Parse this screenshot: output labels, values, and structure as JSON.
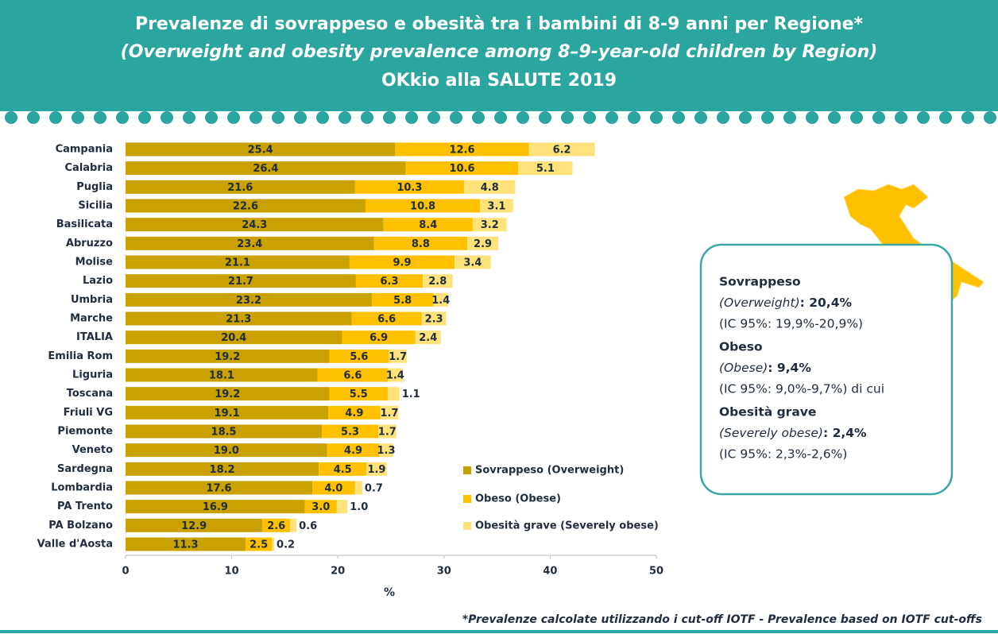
{
  "chart_data": {
    "type": "stacked_barh",
    "title": "Prevalenze di sovrappeso e obesità tra i bambini di 8-9 anni per Regione*",
    "subtitle": "(Overweight and obesity prevalence among 8–9-year-old children by Region)",
    "subtitle2": "OKkio alla SALUTE 2019",
    "xlabel": "%",
    "footnote": "*Prevalenze calcolate utilizzando i cut-off IOTF - Prevalence based on IOTF cut-offs",
    "categories": [
      "Campania",
      "Calabria",
      "Puglia",
      "Sicilia",
      "Basilicata",
      "Abruzzo",
      "Molise",
      "Lazio",
      "Umbria",
      "Marche",
      "ITALIA",
      "Emilia Rom",
      "Liguria",
      "Toscana",
      "Friuli VG",
      "Piemonte",
      "Veneto",
      "Sardegna",
      "Lombardia",
      "PA Trento",
      "PA Bolzano",
      "Valle d'Aosta"
    ],
    "series": [
      {
        "name": "Sovrappeso (Overweight)",
        "color": "#c9a100",
        "values": [
          25.4,
          26.4,
          21.6,
          22.6,
          24.3,
          23.4,
          21.1,
          21.7,
          23.2,
          21.3,
          20.4,
          19.2,
          18.1,
          19.2,
          19.1,
          18.5,
          19.0,
          18.2,
          17.6,
          16.9,
          12.9,
          11.3
        ],
        "value_labels": [
          "25.4",
          "26.4",
          "21.6",
          "22.6",
          "24.3",
          "23.4",
          "21.1",
          "21.7",
          "23.2",
          "21.3",
          "20.4",
          "19.2",
          "18.1",
          "19.2",
          "19.1",
          "18.5",
          "19.0",
          "18.2",
          "17.6",
          "16.9",
          "12.9",
          "11.3"
        ]
      },
      {
        "name": "Obeso (Obese)",
        "color": "#ffc000",
        "values": [
          12.6,
          10.6,
          10.3,
          10.8,
          8.4,
          8.8,
          9.9,
          6.3,
          5.8,
          6.6,
          6.9,
          5.6,
          6.6,
          5.5,
          4.9,
          5.3,
          4.9,
          4.5,
          4.0,
          3.0,
          2.6,
          2.5
        ],
        "value_labels": [
          "12.6",
          "10.6",
          "10.3",
          "10.8",
          "8.4",
          "8.8",
          "9.9",
          "6.3",
          "5.8",
          "6.6",
          "6.9",
          "5.6",
          "6.6",
          "5.5",
          "4.9",
          "5.3",
          "4.9",
          "4.5",
          "4.0",
          "3.0",
          "2.6",
          "2.5"
        ]
      },
      {
        "name": "Obesità grave (Severely obese)",
        "color": "#ffe27a",
        "values": [
          6.2,
          5.1,
          4.8,
          3.1,
          3.2,
          2.9,
          3.4,
          2.8,
          1.4,
          2.3,
          2.4,
          1.7,
          1.4,
          1.1,
          1.7,
          1.7,
          1.3,
          1.9,
          0.7,
          1.0,
          0.6,
          0.2
        ],
        "value_labels": [
          "6.2",
          "5.1",
          "4.8",
          "3.1",
          "3.2",
          "2.9",
          "3.4",
          "2.8",
          "1.4",
          "2.3",
          "2.4",
          "1.7",
          "1.4",
          "1.1",
          "1.7",
          "1.7",
          "1.3",
          "1.9",
          "0.7",
          "1.0",
          "0.6",
          "0.2"
        ]
      }
    ],
    "xlim": [
      0,
      50
    ],
    "xticks": [
      0,
      10,
      20,
      30,
      40,
      50
    ],
    "grid": false
  },
  "info_box": [
    {
      "title": "Sovrappeso",
      "label": "(Overweight)",
      "value": ": 20,4%",
      "ci": "(IC 95%: 19,9%-20,9%)"
    },
    {
      "title": "Obeso",
      "label": "(Obese)",
      "value": ": 9,4%",
      "ci": "(IC 95%: 9,0%-9,7%) di cui"
    },
    {
      "title": "Obesità grave",
      "label": "(Severely obese)",
      "value": ": 2,4%",
      "ci": "(IC 95%: 2,3%-2,6%)"
    }
  ]
}
